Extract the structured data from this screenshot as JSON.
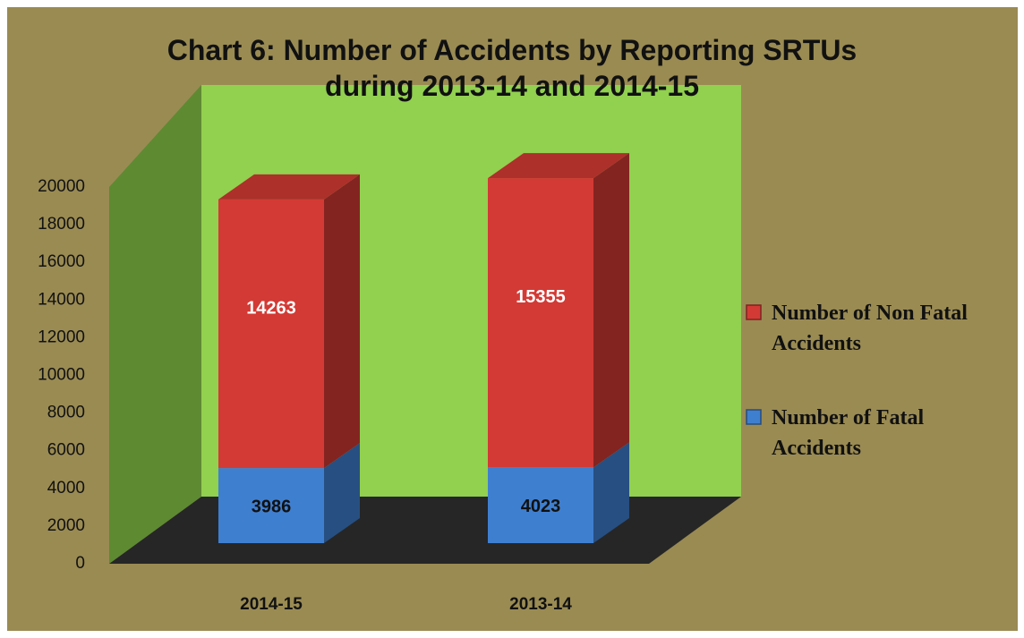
{
  "chart_data": {
    "type": "bar3d_stacked",
    "title": "Chart 6: Number of Accidents by Reporting SRTUs during 2013-14 and 2014-15",
    "categories": [
      "2014-15",
      "2013-14"
    ],
    "series": [
      {
        "name": "Number of Fatal Accidents",
        "color": "#3f7fd0",
        "values": [
          3986,
          4023
        ]
      },
      {
        "name": "Number of Non Fatal Accidents",
        "color": "#d33a35",
        "values": [
          14263,
          15355
        ]
      }
    ],
    "ylim": [
      0,
      20000
    ],
    "yticks": [
      0,
      2000,
      4000,
      6000,
      8000,
      10000,
      12000,
      14000,
      16000,
      18000,
      20000
    ],
    "legend": "right"
  }
}
